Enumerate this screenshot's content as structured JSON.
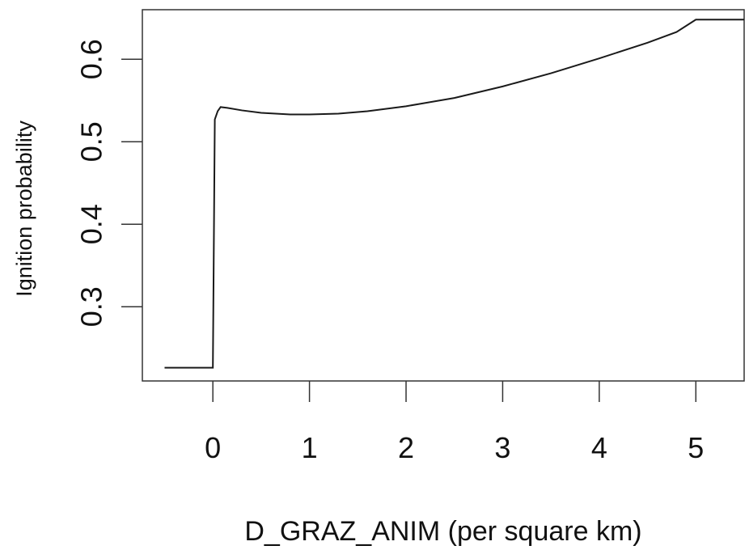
{
  "chart_data": {
    "type": "line",
    "title": "",
    "xlabel": "D_GRAZ_ANIM (per square km)",
    "ylabel": "Ignition probability",
    "xlim": [
      -0.73,
      5.5
    ],
    "ylim": [
      0.21,
      0.66
    ],
    "xticks": [
      "0",
      "1",
      "2",
      "3",
      "4",
      "5"
    ],
    "yticks": [
      "0.3",
      "0.4",
      "0.5",
      "0.6"
    ],
    "grid": false,
    "legend": "none",
    "colors": {
      "line": "#1a1a1a",
      "axis": "#333333",
      "text": "#111111"
    },
    "series": [
      {
        "x": [
          -0.5,
          0.0,
          0.02,
          0.05,
          0.08,
          0.15,
          0.3,
          0.5,
          0.8,
          1.0,
          1.3,
          1.6,
          2.0,
          2.5,
          3.0,
          3.5,
          4.0,
          4.5,
          4.8,
          5.0,
          5.5
        ],
        "y": [
          0.226,
          0.226,
          0.527,
          0.537,
          0.542,
          0.541,
          0.538,
          0.535,
          0.533,
          0.533,
          0.534,
          0.537,
          0.543,
          0.553,
          0.567,
          0.583,
          0.601,
          0.62,
          0.633,
          0.648,
          0.648
        ]
      }
    ]
  }
}
